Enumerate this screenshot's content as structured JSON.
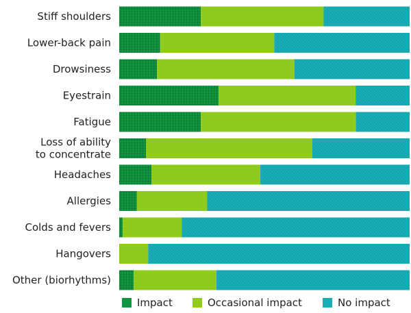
{
  "chart_data": {
    "type": "bar",
    "orientation": "horizontal",
    "stacked": true,
    "percent_scale": true,
    "categories": [
      [
        "Stiff shoulders"
      ],
      [
        "Lower-back pain"
      ],
      [
        "Drowsiness"
      ],
      [
        "Eyestrain"
      ],
      [
        "Fatigue"
      ],
      [
        "Loss of ability",
        "to concentrate"
      ],
      [
        "Headaches"
      ],
      [
        "Allergies"
      ],
      [
        "Colds and fevers"
      ],
      [
        "Hangovers"
      ],
      [
        "Other (biorhythms)"
      ]
    ],
    "series": [
      {
        "name": "Impact",
        "color": "#109540",
        "pattern": "grid",
        "values": [
          28.1,
          14.1,
          13.0,
          34.2,
          28.1,
          9.2,
          11.1,
          6.1,
          1.2,
          0.0,
          5.0
        ]
      },
      {
        "name": "Occasional impact",
        "color": "#8ecb1c",
        "pattern": "none",
        "values": [
          42.3,
          39.3,
          47.3,
          47.2,
          53.4,
          57.3,
          37.5,
          24.2,
          20.3,
          10.0,
          28.5
        ]
      },
      {
        "name": "No impact",
        "color": "#19aeb6",
        "pattern": "dots",
        "values": [
          29.6,
          46.6,
          39.7,
          18.6,
          18.5,
          33.5,
          51.4,
          69.7,
          78.5,
          90.0,
          66.5
        ]
      }
    ],
    "legend_position": "bottom",
    "grid": false
  }
}
